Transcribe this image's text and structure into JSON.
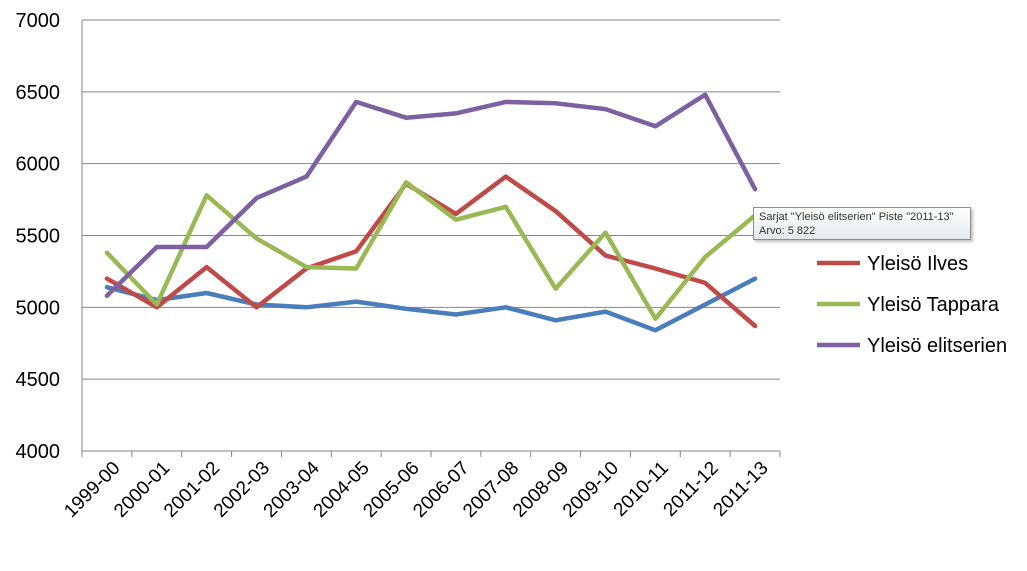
{
  "chart_data": {
    "type": "line",
    "title": "",
    "xlabel": "",
    "ylabel": "",
    "ylim": [
      4000,
      7000
    ],
    "yticks": [
      "4000",
      "4500",
      "5000",
      "5500",
      "6000",
      "6500",
      "7000"
    ],
    "categories": [
      "1999-00",
      "2000-01",
      "2001-02",
      "2002-03",
      "2003-04",
      "2004-05",
      "2005-06",
      "2006-07",
      "2007-08",
      "2008-09",
      "2009-10",
      "2010-11",
      "2011-12",
      "2011-13"
    ],
    "grid": "horizontal",
    "legend_position": "right",
    "series": [
      {
        "name": "",
        "color": "#4a7ebb",
        "values": [
          5140,
          5050,
          5100,
          5020,
          5000,
          5040,
          4990,
          4950,
          5000,
          4910,
          4970,
          4840,
          5020,
          5200
        ],
        "in_legend": false
      },
      {
        "name": "Yleisö Ilves",
        "color": "#be4b48",
        "values": [
          5200,
          5000,
          5280,
          5000,
          5270,
          5390,
          5860,
          5650,
          5910,
          5670,
          5360,
          5270,
          5170,
          4870
        ],
        "in_legend": true
      },
      {
        "name": "Yleisö Tappara",
        "color": "#98b954",
        "values": [
          5380,
          5020,
          5780,
          5480,
          5280,
          5270,
          5870,
          5610,
          5700,
          5130,
          5520,
          4920,
          5350,
          5640
        ],
        "in_legend": true
      },
      {
        "name": "Yleisö elitserien",
        "color": "#7d60a0",
        "values": [
          5080,
          5420,
          5420,
          5760,
          5910,
          6430,
          6320,
          6350,
          6430,
          6420,
          6380,
          6260,
          6480,
          5822
        ],
        "in_legend": true
      }
    ]
  },
  "tooltip": {
    "line1": "Sarjat \"Yleisö elitserien\" Piste \"2011-13\"",
    "line2": "Arvo: 5 822"
  }
}
